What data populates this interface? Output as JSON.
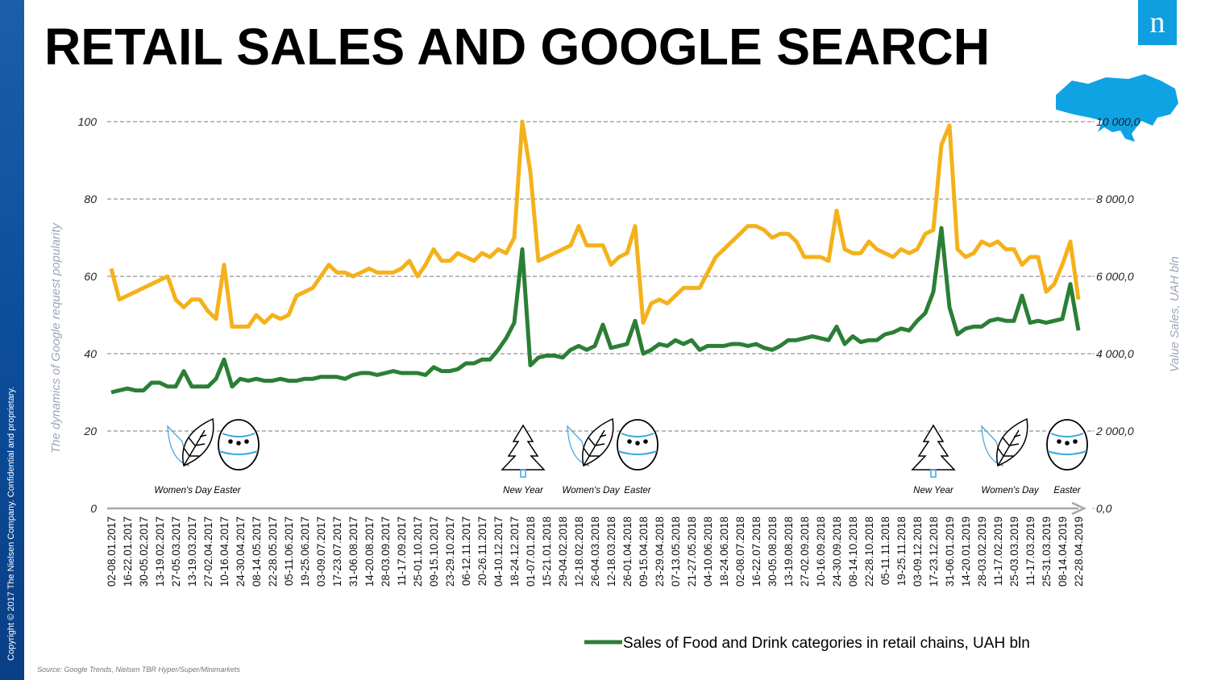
{
  "logo": "n",
  "footer": {
    "source": "Source: Google Trends, Nielsen TBR Hyper/Super/Minimarkets",
    "copyright": "Copyright © 2017 The Nielsen Company. Confidential and proprietary."
  },
  "chart_data": {
    "type": "line",
    "title": "RETAIL SALES AND GOOGLE SEARCH",
    "y_label": "The dynamics of Google request popularity",
    "y2_label": "Value Sales, UAH bln",
    "categories": [
      "02-08.01.2017",
      null,
      "16-22.01.2017",
      null,
      "30-05.02.2017",
      null,
      "13-19.02.2017",
      null,
      "27-05.03.2017",
      null,
      "13-19.03.2017",
      null,
      "27-02.04.2017",
      null,
      "10-16.04.2017",
      null,
      "24-30.04.2017",
      null,
      "08-14.05.2017",
      null,
      "22-28.05.2017",
      null,
      "05-11.06.2017",
      null,
      "19-25.06.2017",
      null,
      "03-09.07.2017",
      null,
      "17-23.07.2017",
      null,
      "31-06.08.2017",
      null,
      "14-20.08.2017",
      null,
      "28-03.09.2017",
      null,
      "11-17.09.2017",
      null,
      "25-01.10.2017",
      null,
      "09-15.10.2017",
      null,
      "23-29.10.2017",
      null,
      "06-12.11.2017",
      null,
      "20-26.11.2017",
      null,
      "04-10.12.2017",
      null,
      "18-24.12.2017",
      null,
      "01-07.01.2018",
      null,
      "15-21.01.2018",
      null,
      "29-04.02.2018",
      null,
      "12-18.02.2018",
      null,
      "26-04.03.2018",
      null,
      "12-18.03.2018",
      null,
      "26-01.04.2018",
      null,
      "09-15.04.2018",
      null,
      "23-29.04.2018",
      null,
      "07-13.05.2018",
      null,
      "21-27.05.2018",
      null,
      "04-10.06.2018",
      null,
      "18-24.06.2018",
      null,
      "02-08.07.2018",
      null,
      "16-22.07.2018",
      null,
      "30-05.08.2018",
      null,
      "13-19.08.2018",
      null,
      "27-02.09.2018",
      null,
      "10-16.09.2018",
      null,
      "24-30.09.2018",
      null,
      "08-14.10.2018",
      null,
      "22-28.10.2018",
      null,
      "05-11.11.2018",
      null,
      "19-25.11.2018",
      null,
      "03-09.12.2018",
      null,
      "17-23.12.2018",
      null,
      "31-06.01.2019",
      null,
      "14-20.01.2019",
      null,
      "28-03.02.2019",
      null,
      "11-17.02.2019",
      null,
      "25-03.03.2019",
      null,
      "11-17.03.2019",
      null,
      "25-31.03.2019",
      null,
      "08-14.04.2019",
      null,
      "22-28.04.2019"
    ],
    "series": [
      {
        "color": "#f5b11b",
        "values": [
          62,
          54,
          55,
          56,
          57,
          58,
          59,
          60,
          54,
          52,
          54,
          54,
          51,
          49,
          63,
          47,
          47,
          47,
          50,
          48,
          50,
          49,
          50,
          55,
          56,
          57,
          60,
          63,
          61,
          61,
          60,
          61,
          62,
          61,
          61,
          61,
          62,
          64,
          60,
          63,
          67,
          64,
          64,
          66,
          65,
          64,
          66,
          65,
          67,
          66,
          70,
          100,
          87,
          64,
          65,
          66,
          67,
          68,
          73,
          68,
          68,
          68,
          63,
          65,
          66,
          73,
          48,
          53,
          54,
          53,
          55,
          57,
          57,
          57,
          61,
          65,
          67,
          69,
          71,
          73,
          73,
          72,
          70,
          71,
          71,
          69,
          65,
          65,
          65,
          64,
          77,
          67,
          66,
          66,
          69,
          67,
          66,
          65,
          67,
          66,
          67,
          71,
          72,
          94,
          99,
          67,
          65,
          66,
          69,
          68,
          69,
          67,
          67,
          63,
          65,
          65,
          56,
          58,
          63,
          69,
          54
        ]
      },
      {
        "name": "Sales of Food and Drink categories in retail chains, UAH bln",
        "color": "#2b7f35",
        "axis": "y2",
        "values": [
          3000,
          3050,
          3100,
          3050,
          3050,
          3250,
          3250,
          3150,
          3150,
          3550,
          3150,
          3150,
          3150,
          3350,
          3850,
          3150,
          3350,
          3300,
          3350,
          3300,
          3300,
          3350,
          3300,
          3300,
          3350,
          3350,
          3400,
          3400,
          3400,
          3350,
          3450,
          3500,
          3500,
          3450,
          3500,
          3550,
          3500,
          3500,
          3500,
          3450,
          3650,
          3550,
          3550,
          3600,
          3750,
          3750,
          3850,
          3850,
          4100,
          4400,
          4800,
          6700,
          3700,
          3900,
          3950,
          3950,
          3900,
          4100,
          4200,
          4100,
          4200,
          4750,
          4150,
          4200,
          4250,
          4850,
          4000,
          4100,
          4250,
          4200,
          4350,
          4250,
          4350,
          4100,
          4200,
          4200,
          4200,
          4250,
          4250,
          4200,
          4250,
          4150,
          4100,
          4200,
          4350,
          4350,
          4400,
          4450,
          4400,
          4350,
          4700,
          4250,
          4450,
          4300,
          4350,
          4350,
          4500,
          4550,
          4650,
          4600,
          4850,
          5050,
          5600,
          7250,
          5200,
          4500,
          4650,
          4700,
          4700,
          4850,
          4900,
          4850,
          4850,
          5500,
          4800,
          4850,
          4800,
          4850,
          4900,
          5800,
          4600
        ]
      }
    ],
    "ylim": [
      0,
      100
    ],
    "yticks": [
      0,
      20,
      40,
      60,
      80,
      100
    ],
    "y2lim": [
      0,
      10000
    ],
    "y2ticks": [
      {
        "value": 0,
        "label": "0,0"
      },
      {
        "value": 2000,
        "label": "2 000,0"
      },
      {
        "value": 4000,
        "label": "4 000,0"
      },
      {
        "value": 6000,
        "label": "6 000,0"
      },
      {
        "value": 8000,
        "label": "8 000,0"
      },
      {
        "value": 10000,
        "label": "10 000,0"
      }
    ],
    "grid": true,
    "annotations": [
      "Women's Day",
      "Easter",
      "New Year",
      "Women's Day",
      "Easter",
      "New Year",
      "Women's Day",
      "Easter"
    ]
  }
}
